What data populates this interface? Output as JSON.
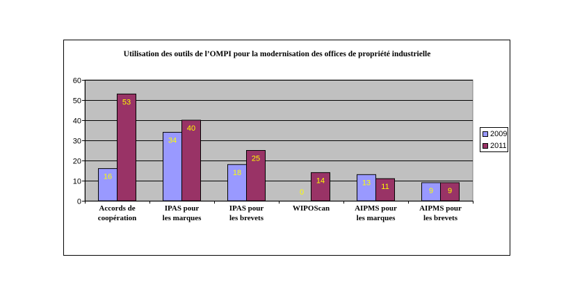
{
  "chart_data": {
    "type": "bar",
    "title": "Utilisation des outils de l’OMPI pour la modernisation des offices de propriété industrielle",
    "xlabel": "",
    "ylabel": "",
    "categories": [
      "Accords de\ncoopération",
      "IPAS pour\nles marques",
      "IPAS pour\nles brevets",
      "WIPOScan",
      "AIPMS pour\nles marques",
      "AIPMS pour\nles brevets"
    ],
    "series": [
      {
        "name": "2009",
        "values": [
          16,
          34,
          18,
          0,
          13,
          9
        ],
        "color": "#9999FF"
      },
      {
        "name": "2011",
        "values": [
          53,
          40,
          25,
          14,
          11,
          9
        ],
        "color": "#993366"
      }
    ],
    "ylim": [
      0,
      60
    ],
    "yticks": [
      0,
      10,
      20,
      30,
      40,
      50,
      60
    ],
    "grid": true,
    "legend": "right",
    "data_labels": true,
    "data_label_color": "#FFFF00",
    "plot_background": "#C0C0C0"
  }
}
